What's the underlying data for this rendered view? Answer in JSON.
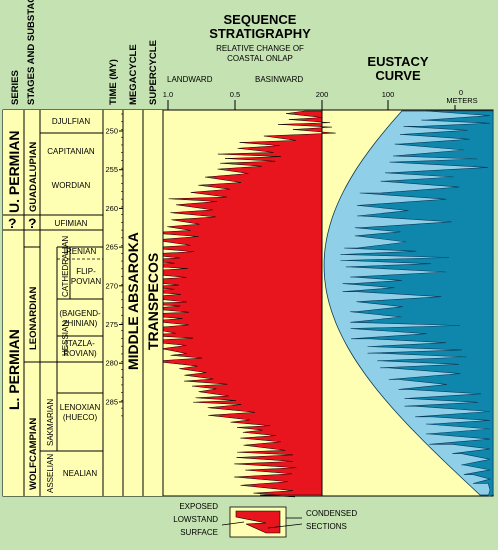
{
  "column_headers": {
    "series": "SERIES",
    "stages": "STAGES AND SUBSTAGE",
    "time": "TIME (MY)",
    "megacycle": "MEGACYCLE",
    "supercycle": "SUPERCYCLE"
  },
  "sequence_title": "SEQUENCE STRATIGRAPHY",
  "onlap_subtitle": "RELATIVE CHANGE OF COASTAL ONLAP",
  "landward_label": "LANDWARD",
  "basinward_label": "BASINWARD",
  "onlap_ticks": [
    "1.0",
    "0.5"
  ],
  "eustacy_title": "EUSTACY CURVE",
  "eustacy_ticks": [
    "200",
    "100",
    "0"
  ],
  "eustacy_unit": "METERS",
  "time_ticks": [
    "250",
    "255",
    "260",
    "265",
    "270",
    "275",
    "280",
    "285"
  ],
  "series_labels": {
    "upper": "U. PERMIAN",
    "lower": "L. PERMIAN",
    "q1": "?",
    "q2": "?",
    "guadalupian": "GUADALUPIAN",
    "leonardian": "LEONARDIAN",
    "wolfcampian": "WOLFCAMPIAN"
  },
  "stage_labels": {
    "djulfian": "DJULFIAN",
    "capitanian": "CAPITANIAN",
    "wordian": "WORDIAN",
    "ufimian": "UFIMIAN",
    "irenian": "IRENIAN",
    "cathedralian": "CATHEDRALIAN",
    "flippovian_1": "FLIP-",
    "flippovian_2": "POVIAN",
    "hessian": "HESSIAN",
    "baigendzhinian_1": "(BAIGEND-",
    "baigendzhinian_2": "ZHINIAN)",
    "tazlarovian_1": "(TAZLA-",
    "tazlarovian_2": "ROVIAN)",
    "sakmarian": "SAKMARIAN",
    "lenoxian_1": "LENOXIAN",
    "lenoxian_2": "(HUECO)",
    "asselian": "ASSELIAN",
    "nealian": "NEALIAN"
  },
  "megacycle_label": "MIDDLE ABSAROKA",
  "supercycle_label": "TRANSPECOS",
  "legend": {
    "exposed_1": "EXPOSED",
    "exposed_2": "LOWSTAND",
    "exposed_3": "SURFACE",
    "condensed_1": "CONDENSED",
    "condensed_2": "SECTIONS"
  },
  "colors": {
    "onlap_fill": "#e8141e",
    "panel_yellow": "#ffffb3",
    "eustacy_dark": "#0f86ab",
    "eustacy_light": "#8fcfe8",
    "background": "#c5e3b2"
  }
}
